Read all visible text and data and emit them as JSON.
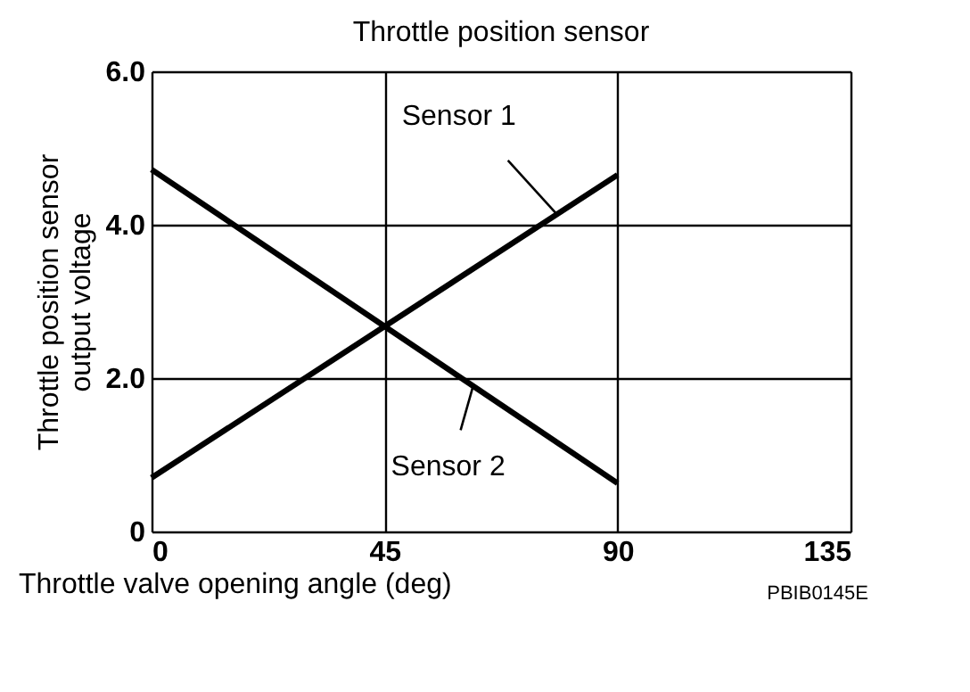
{
  "chart_data": {
    "type": "line",
    "title": "Throttle position sensor",
    "xlabel": "Throttle valve opening angle (deg)",
    "ylabel": "Throttle position sensor output voltage",
    "x": [
      0,
      90
    ],
    "series": [
      {
        "name": "Sensor 1",
        "color": "#000000",
        "values": [
          0.7,
          4.65
        ]
      },
      {
        "name": "Sensor 2",
        "color": "#000000",
        "values": [
          4.72,
          0.63
        ]
      }
    ],
    "xlim": [
      0,
      135
    ],
    "xticks": [
      0,
      45,
      90,
      135
    ],
    "ylim": [
      0,
      6
    ],
    "yticks": [
      {
        "value": 0,
        "label": "0"
      },
      {
        "value": 2,
        "label": "2.0"
      },
      {
        "value": 4,
        "label": "4.0"
      },
      {
        "value": 6,
        "label": "6.0"
      }
    ],
    "grid": true,
    "marker": "none",
    "line_style": "solid",
    "annotations": [
      "PBIB0145E"
    ]
  }
}
